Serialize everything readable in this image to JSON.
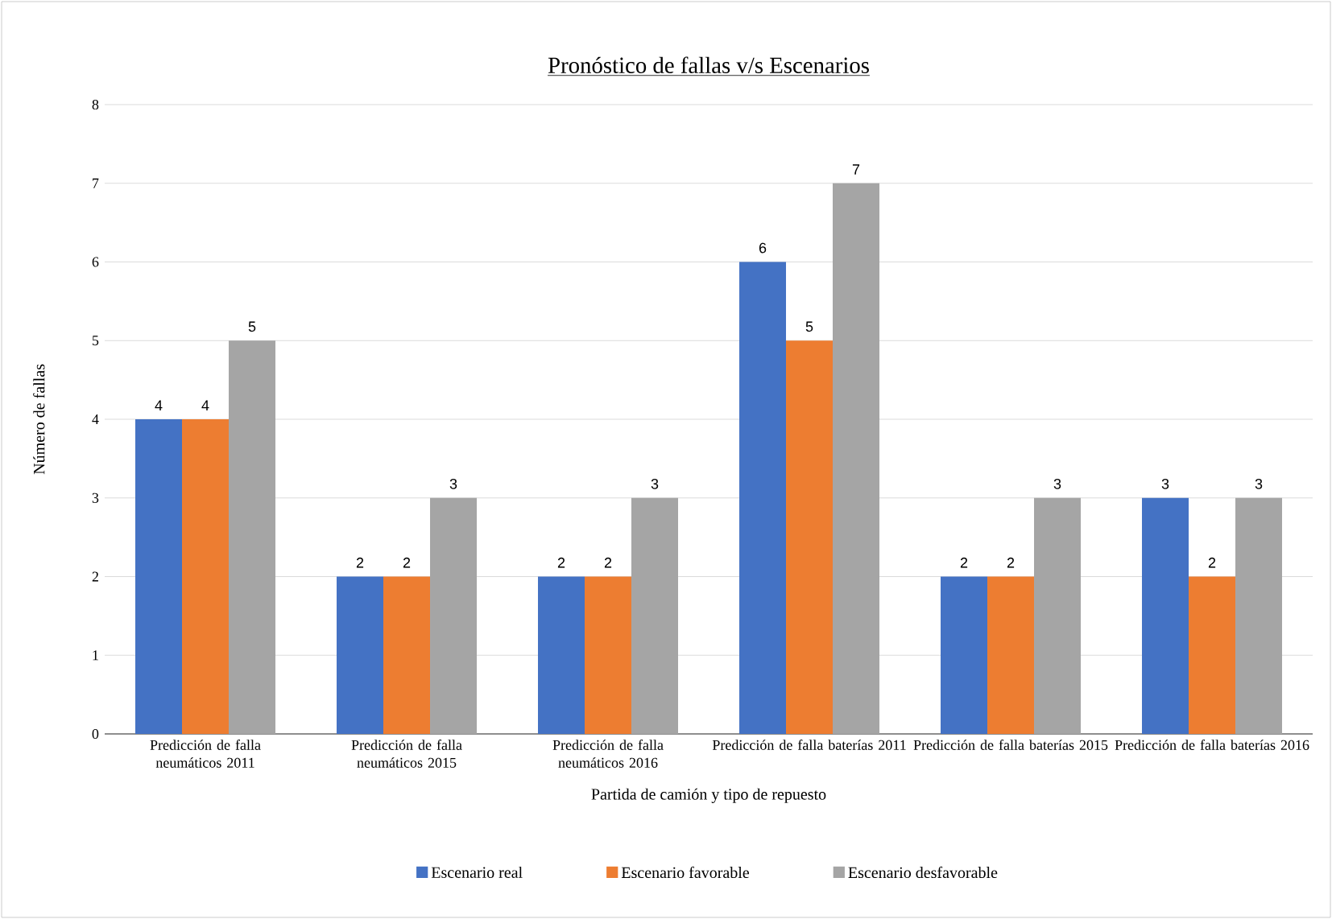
{
  "chart_data": {
    "type": "bar",
    "title": "Pronóstico de fallas v/s Escenarios",
    "xlabel": "Partida de camión y tipo de repuesto",
    "ylabel": "Número de fallas",
    "categories": [
      "Predicción de falla neumáticos 2011",
      "Predicción de falla neumáticos 2015",
      "Predicción de falla neumáticos 2016",
      "Predicción de falla baterías 2011",
      "Predicción de falla baterías 2015",
      "Predicción de falla baterías 2016"
    ],
    "series": [
      {
        "name": "Escenario real",
        "color": "#4472c4",
        "values": [
          4,
          2,
          2,
          6,
          2,
          3
        ]
      },
      {
        "name": "Escenario favorable",
        "color": "#ed7d31",
        "values": [
          4,
          2,
          2,
          5,
          2,
          2
        ]
      },
      {
        "name": "Escenario desfavorable",
        "color": "#a5a5a5",
        "values": [
          5,
          3,
          3,
          7,
          3,
          3
        ]
      }
    ],
    "ylim": [
      0,
      8
    ],
    "yticks": [
      0,
      1,
      2,
      3,
      4,
      5,
      6,
      7,
      8
    ],
    "grid": "y",
    "legend": "bottom",
    "data_labels": true
  }
}
